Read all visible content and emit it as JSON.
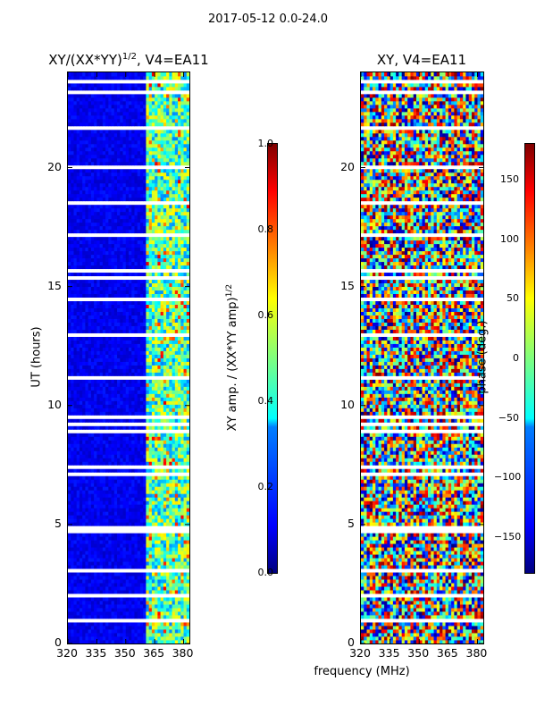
{
  "figure": {
    "suptitle": "2017-05-12 0.0-24.0",
    "xlabel": "frequency (MHz)",
    "ylabel": "UT (hours)"
  },
  "chart_data": [
    {
      "type": "heatmap",
      "title": "XY/(XX*YY)",
      "title_exp": "1/2",
      "title_suffix": ", V4=EA11",
      "xlabel": "frequency (MHz)",
      "ylabel": "UT (hours)",
      "xlim": [
        320,
        383
      ],
      "ylim": [
        0,
        24
      ],
      "xticks": [
        "320",
        "335",
        "350",
        "365",
        "380"
      ],
      "xtick_values": [
        320,
        335,
        350,
        365,
        380
      ],
      "yticks": [
        "0",
        "5",
        "10",
        "15",
        "20"
      ],
      "ytick_values": [
        0,
        5,
        10,
        15,
        20
      ],
      "colorbar": {
        "label": "XY amp. / (XX*YY amp)",
        "label_exp": "1/2",
        "range": [
          0.0,
          1.0
        ],
        "ticks": [
          "0.0",
          "0.2",
          "0.4",
          "0.6",
          "0.8",
          "1.0"
        ],
        "tick_values": [
          0.0,
          0.2,
          0.4,
          0.6,
          0.8,
          1.0
        ],
        "colormap": "jet"
      }
    },
    {
      "type": "heatmap",
      "title": "XY, V4=EA11",
      "xlabel": "frequency (MHz)",
      "ylabel": "",
      "xlim": [
        320,
        383
      ],
      "ylim": [
        0,
        24
      ],
      "xticks": [
        "320",
        "335",
        "350",
        "365",
        "380"
      ],
      "xtick_values": [
        320,
        335,
        350,
        365,
        380
      ],
      "yticks": [
        "0",
        "5",
        "10",
        "15",
        "20"
      ],
      "ytick_values": [
        0,
        5,
        10,
        15,
        20
      ],
      "colorbar": {
        "label": "phase (deg.)",
        "range": [
          -180,
          180
        ],
        "ticks": [
          "−150",
          "−100",
          "−50",
          "0",
          "50",
          "100",
          "150"
        ],
        "tick_values": [
          -150,
          -100,
          -50,
          0,
          50,
          100,
          150
        ],
        "colormap": "jet"
      }
    }
  ]
}
